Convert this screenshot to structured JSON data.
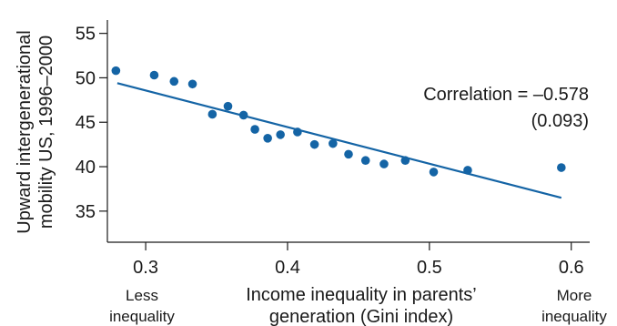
{
  "chart_data": {
    "type": "scatter",
    "xlabel": [
      "Income inequality in parents’",
      "generation (Gini index)"
    ],
    "ylabel": [
      "Upward intergenerational",
      "mobility US, 1996–2000"
    ],
    "xlim": [
      0.273,
      0.613
    ],
    "ylim": [
      31.5,
      56.5
    ],
    "xticks": [
      0.3,
      0.4,
      0.5,
      0.6
    ],
    "xtick_labels": [
      "0.3",
      "0.4",
      "0.5",
      "0.6"
    ],
    "yticks": [
      35,
      40,
      45,
      50,
      55
    ],
    "ytick_labels": [
      "35",
      "40",
      "45",
      "50",
      "55"
    ],
    "x_end_labels": {
      "left": [
        "Less",
        "inequality"
      ],
      "right": [
        "More",
        "inequality"
      ]
    },
    "points": [
      {
        "x": 0.279,
        "y": 50.8
      },
      {
        "x": 0.306,
        "y": 50.3
      },
      {
        "x": 0.32,
        "y": 49.6
      },
      {
        "x": 0.333,
        "y": 49.3
      },
      {
        "x": 0.347,
        "y": 45.9
      },
      {
        "x": 0.358,
        "y": 46.8
      },
      {
        "x": 0.369,
        "y": 45.8
      },
      {
        "x": 0.377,
        "y": 44.2
      },
      {
        "x": 0.386,
        "y": 43.2
      },
      {
        "x": 0.395,
        "y": 43.6
      },
      {
        "x": 0.407,
        "y": 43.9
      },
      {
        "x": 0.419,
        "y": 42.5
      },
      {
        "x": 0.432,
        "y": 42.6
      },
      {
        "x": 0.443,
        "y": 41.4
      },
      {
        "x": 0.455,
        "y": 40.7
      },
      {
        "x": 0.468,
        "y": 40.3
      },
      {
        "x": 0.483,
        "y": 40.7
      },
      {
        "x": 0.503,
        "y": 39.4
      },
      {
        "x": 0.527,
        "y": 39.6
      },
      {
        "x": 0.593,
        "y": 39.9
      }
    ],
    "trendline": {
      "x": [
        0.28,
        0.593
      ],
      "y": [
        49.4,
        36.5
      ]
    },
    "annotation": [
      "Correlation = –0.578",
      "(0.093)"
    ],
    "colors": {
      "points": "#1464a5",
      "line": "#1464a5",
      "axis": "#1a1a1a",
      "text": "#1a1a1a"
    }
  }
}
